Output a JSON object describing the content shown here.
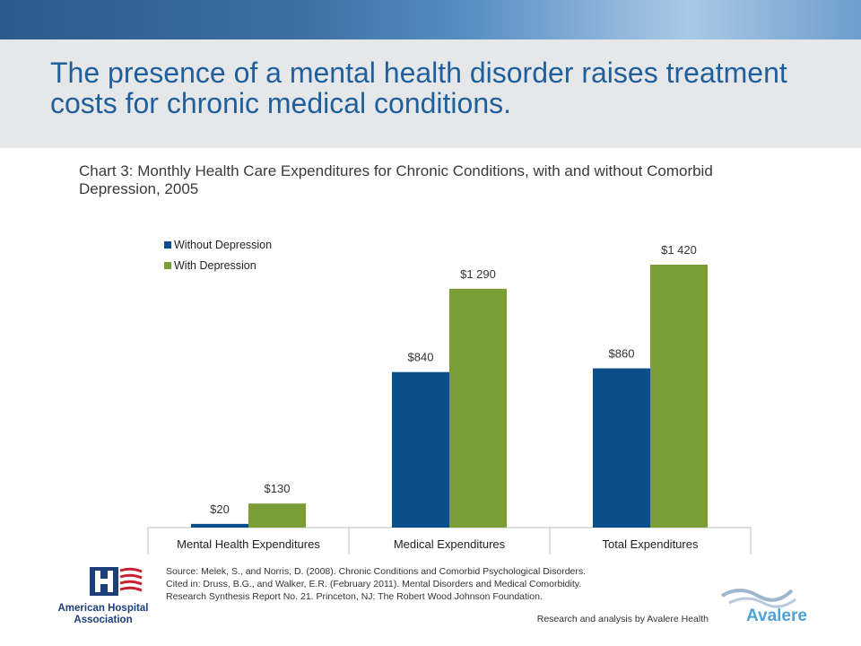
{
  "header": {
    "title": "The presence of a mental health disorder raises treatment costs for chronic medical conditions."
  },
  "chart_data": {
    "type": "bar",
    "title": "Chart 3: Monthly Health Care Expenditures for Chronic Conditions, with and without Comorbid Depression, 2005",
    "xlabel": "",
    "ylabel": "",
    "categories": [
      "Mental Health Expenditures",
      "Medical Expenditures",
      "Total Expenditures"
    ],
    "series": [
      {
        "name": "Without Depression",
        "values": [
          20,
          840,
          860
        ],
        "labels": [
          "$20",
          "$840",
          "$860"
        ],
        "color": "#0b4f8a"
      },
      {
        "name": "With Depression",
        "values": [
          130,
          1290,
          1420
        ],
        "labels": [
          "$130",
          "$1 290",
          "$1 420"
        ],
        "color": "#7a9d35"
      }
    ],
    "ylim": [
      0,
      1420
    ],
    "grid": false,
    "legend": "top-left"
  },
  "footer": {
    "source_lines": [
      "Source: Melek, S., and Norris, D. (2008). Chronic Conditions and Comorbid Psychological Disorders.",
      "Cited in: Druss, B.G., and Walker, E.R. (February 2011). Mental Disorders and Medical Comorbidity.",
      "Research Synthesis Report No. 21. Princeton, NJ: The Robert Wood Johnson Foundation."
    ],
    "credit": "Research and analysis by Avalere Health"
  },
  "logos": {
    "aha_lines": [
      "American Hospital",
      "Association"
    ],
    "avalere": "Avalere"
  }
}
